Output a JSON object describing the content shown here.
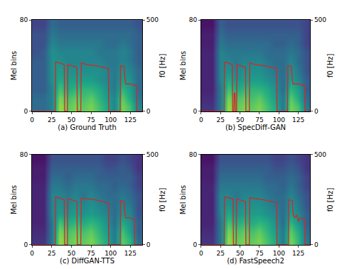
{
  "chart_data": [
    {
      "type": "heatmap",
      "title": "(a) Ground Truth",
      "y_label": "Mel bins",
      "y2_label": "f0 [Hz]",
      "x": [
        5,
        15,
        25,
        35,
        45,
        55,
        65,
        75,
        85,
        95,
        105,
        115,
        125,
        135
      ],
      "y": [
        4,
        12,
        20,
        28,
        36,
        44,
        52,
        60,
        68,
        76
      ],
      "z": [
        [
          0.35,
          0.35,
          0.45,
          0.85,
          0.75,
          0.8,
          0.75,
          0.8,
          0.7,
          0.6,
          0.45,
          0.8,
          0.7,
          0.45
        ],
        [
          0.35,
          0.35,
          0.45,
          0.8,
          0.7,
          0.75,
          0.7,
          0.75,
          0.65,
          0.55,
          0.45,
          0.75,
          0.6,
          0.4
        ],
        [
          0.3,
          0.3,
          0.45,
          0.7,
          0.6,
          0.65,
          0.65,
          0.65,
          0.6,
          0.5,
          0.4,
          0.65,
          0.55,
          0.35
        ],
        [
          0.3,
          0.3,
          0.5,
          0.6,
          0.55,
          0.55,
          0.55,
          0.55,
          0.5,
          0.45,
          0.4,
          0.55,
          0.5,
          0.35
        ],
        [
          0.3,
          0.3,
          0.5,
          0.55,
          0.5,
          0.5,
          0.5,
          0.5,
          0.5,
          0.45,
          0.4,
          0.5,
          0.45,
          0.35
        ],
        [
          0.3,
          0.3,
          0.5,
          0.5,
          0.45,
          0.45,
          0.45,
          0.45,
          0.45,
          0.4,
          0.4,
          0.45,
          0.4,
          0.3
        ],
        [
          0.25,
          0.3,
          0.5,
          0.45,
          0.45,
          0.45,
          0.45,
          0.45,
          0.4,
          0.4,
          0.4,
          0.45,
          0.4,
          0.3
        ],
        [
          0.25,
          0.25,
          0.45,
          0.4,
          0.4,
          0.4,
          0.4,
          0.4,
          0.4,
          0.35,
          0.35,
          0.4,
          0.35,
          0.3
        ],
        [
          0.25,
          0.25,
          0.4,
          0.35,
          0.35,
          0.35,
          0.35,
          0.35,
          0.35,
          0.35,
          0.35,
          0.35,
          0.35,
          0.3
        ],
        [
          0.2,
          0.2,
          0.35,
          0.3,
          0.3,
          0.3,
          0.3,
          0.3,
          0.3,
          0.3,
          0.3,
          0.3,
          0.3,
          0.25
        ]
      ],
      "zlim": [
        0,
        1
      ],
      "xlim": [
        0,
        140
      ],
      "xticks": [
        0,
        25,
        50,
        75,
        100,
        125
      ],
      "ylim": [
        0,
        80
      ],
      "yticks": [
        0,
        80
      ],
      "y2lim": [
        0,
        500
      ],
      "y2ticks": [
        0,
        500
      ],
      "grid": false,
      "series": [
        {
          "type": "line",
          "axis": "y2",
          "color": "#d62728",
          "x": [
            0,
            29.5,
            30,
            35,
            41,
            41.5,
            45,
            45.5,
            50,
            57,
            57.5,
            62,
            62.5,
            70,
            80,
            90,
            97,
            97.5,
            112,
            112.5,
            117,
            118,
            119,
            125,
            130,
            132.5,
            133,
            140
          ],
          "values": [
            0,
            0,
            270,
            265,
            255,
            0,
            0,
            255,
            250,
            240,
            0,
            0,
            265,
            255,
            250,
            240,
            235,
            0,
            0,
            250,
            245,
            180,
            150,
            150,
            145,
            140,
            0,
            0
          ]
        }
      ]
    },
    {
      "type": "heatmap",
      "title": "(b) SpecDiff-GAN",
      "y_label": "Mel bins",
      "y2_label": "f0 [Hz]",
      "x": [
        5,
        15,
        25,
        35,
        45,
        55,
        65,
        75,
        85,
        95,
        105,
        115,
        125,
        135
      ],
      "y": [
        4,
        12,
        20,
        28,
        36,
        44,
        52,
        60,
        68,
        76
      ],
      "z": [
        [
          0.15,
          0.15,
          0.4,
          0.85,
          0.75,
          0.8,
          0.75,
          0.8,
          0.7,
          0.6,
          0.4,
          0.8,
          0.7,
          0.4
        ],
        [
          0.12,
          0.12,
          0.4,
          0.8,
          0.7,
          0.75,
          0.7,
          0.75,
          0.65,
          0.55,
          0.4,
          0.75,
          0.6,
          0.35
        ],
        [
          0.1,
          0.1,
          0.4,
          0.7,
          0.6,
          0.65,
          0.65,
          0.65,
          0.6,
          0.5,
          0.35,
          0.65,
          0.55,
          0.3
        ],
        [
          0.1,
          0.1,
          0.45,
          0.6,
          0.5,
          0.55,
          0.55,
          0.55,
          0.5,
          0.45,
          0.35,
          0.55,
          0.45,
          0.3
        ],
        [
          0.1,
          0.1,
          0.45,
          0.5,
          0.45,
          0.5,
          0.5,
          0.5,
          0.45,
          0.4,
          0.35,
          0.5,
          0.4,
          0.25
        ],
        [
          0.1,
          0.1,
          0.45,
          0.45,
          0.4,
          0.45,
          0.45,
          0.45,
          0.4,
          0.35,
          0.35,
          0.45,
          0.35,
          0.25
        ],
        [
          0.1,
          0.1,
          0.45,
          0.4,
          0.4,
          0.4,
          0.4,
          0.4,
          0.35,
          0.35,
          0.35,
          0.4,
          0.35,
          0.25
        ],
        [
          0.08,
          0.08,
          0.4,
          0.35,
          0.35,
          0.35,
          0.35,
          0.35,
          0.35,
          0.3,
          0.3,
          0.35,
          0.3,
          0.2
        ],
        [
          0.08,
          0.08,
          0.35,
          0.3,
          0.3,
          0.3,
          0.3,
          0.3,
          0.3,
          0.3,
          0.3,
          0.3,
          0.3,
          0.2
        ],
        [
          0.05,
          0.05,
          0.3,
          0.25,
          0.25,
          0.25,
          0.25,
          0.25,
          0.25,
          0.25,
          0.25,
          0.25,
          0.25,
          0.2
        ]
      ],
      "zlim": [
        0,
        1
      ],
      "xlim": [
        0,
        140
      ],
      "xticks": [
        0,
        25,
        50,
        75,
        100,
        125
      ],
      "ylim": [
        0,
        80
      ],
      "yticks": [
        0,
        80
      ],
      "y2lim": [
        0,
        500
      ],
      "y2ticks": [
        0,
        500
      ],
      "grid": false,
      "series": [
        {
          "type": "line",
          "axis": "y2",
          "color": "#d62728",
          "x": [
            0,
            29.5,
            30,
            35,
            40,
            40.5,
            42,
            42.5,
            43.5,
            44,
            45.5,
            46,
            50,
            57,
            57.5,
            62,
            62.5,
            70,
            80,
            90,
            97,
            97.5,
            111,
            111.5,
            116,
            117,
            118,
            125,
            130,
            133,
            133.5,
            140
          ],
          "values": [
            0,
            0,
            270,
            265,
            255,
            0,
            0,
            100,
            100,
            0,
            0,
            255,
            250,
            240,
            0,
            0,
            265,
            255,
            250,
            240,
            235,
            0,
            0,
            250,
            245,
            180,
            150,
            150,
            145,
            140,
            0,
            0
          ]
        }
      ]
    },
    {
      "type": "heatmap",
      "title": "(c) DiffGAN-TTS",
      "y_label": "Mel bins",
      "y2_label": "f0 [Hz]",
      "x": [
        5,
        15,
        25,
        35,
        45,
        55,
        65,
        75,
        85,
        95,
        105,
        115,
        125,
        135
      ],
      "y": [
        4,
        12,
        20,
        28,
        36,
        44,
        52,
        60,
        68,
        76
      ],
      "z": [
        [
          0.15,
          0.15,
          0.4,
          0.85,
          0.75,
          0.8,
          0.75,
          0.8,
          0.7,
          0.6,
          0.4,
          0.75,
          0.65,
          0.35
        ],
        [
          0.12,
          0.12,
          0.4,
          0.8,
          0.7,
          0.75,
          0.7,
          0.75,
          0.65,
          0.55,
          0.4,
          0.7,
          0.55,
          0.3
        ],
        [
          0.1,
          0.1,
          0.4,
          0.7,
          0.6,
          0.65,
          0.6,
          0.65,
          0.6,
          0.5,
          0.35,
          0.6,
          0.5,
          0.3
        ],
        [
          0.1,
          0.1,
          0.45,
          0.55,
          0.5,
          0.55,
          0.5,
          0.55,
          0.5,
          0.45,
          0.35,
          0.5,
          0.45,
          0.25
        ],
        [
          0.1,
          0.1,
          0.45,
          0.5,
          0.45,
          0.5,
          0.45,
          0.5,
          0.45,
          0.4,
          0.35,
          0.45,
          0.4,
          0.25
        ],
        [
          0.1,
          0.1,
          0.45,
          0.45,
          0.4,
          0.45,
          0.4,
          0.45,
          0.4,
          0.35,
          0.35,
          0.4,
          0.35,
          0.25
        ],
        [
          0.1,
          0.1,
          0.4,
          0.4,
          0.35,
          0.4,
          0.4,
          0.4,
          0.35,
          0.35,
          0.3,
          0.35,
          0.3,
          0.2
        ],
        [
          0.08,
          0.08,
          0.35,
          0.35,
          0.3,
          0.35,
          0.35,
          0.35,
          0.3,
          0.3,
          0.3,
          0.3,
          0.3,
          0.2
        ],
        [
          0.08,
          0.08,
          0.3,
          0.3,
          0.3,
          0.3,
          0.3,
          0.3,
          0.3,
          0.25,
          0.25,
          0.3,
          0.25,
          0.15
        ],
        [
          0.05,
          0.05,
          0.25,
          0.25,
          0.25,
          0.25,
          0.25,
          0.25,
          0.25,
          0.2,
          0.2,
          0.25,
          0.2,
          0.15
        ]
      ],
      "zlim": [
        0,
        1
      ],
      "xlim": [
        0,
        140
      ],
      "xticks": [
        0,
        25,
        50,
        75,
        100,
        125
      ],
      "ylim": [
        0,
        80
      ],
      "yticks": [
        0,
        80
      ],
      "y2lim": [
        0,
        500
      ],
      "y2ticks": [
        0,
        500
      ],
      "grid": false,
      "series": [
        {
          "type": "line",
          "axis": "y2",
          "color": "#d62728",
          "x": [
            0,
            29.5,
            30,
            35,
            41,
            41.5,
            45,
            45.5,
            50,
            57,
            57.5,
            62,
            62.5,
            70,
            80,
            90,
            97,
            97.5,
            112,
            112.5,
            117,
            118,
            119,
            125,
            130,
            130.5,
            140
          ],
          "values": [
            0,
            0,
            265,
            260,
            250,
            0,
            0,
            255,
            250,
            240,
            0,
            0,
            260,
            255,
            250,
            240,
            230,
            0,
            0,
            245,
            240,
            175,
            150,
            150,
            140,
            0,
            0
          ]
        }
      ]
    },
    {
      "type": "heatmap",
      "title": "(d) FastSpeech2",
      "y_label": "Mel bins",
      "y2_label": "f0 [Hz]",
      "x": [
        5,
        15,
        25,
        35,
        45,
        55,
        65,
        75,
        85,
        95,
        105,
        115,
        125,
        135
      ],
      "y": [
        4,
        12,
        20,
        28,
        36,
        44,
        52,
        60,
        68,
        76
      ],
      "z": [
        [
          0.15,
          0.15,
          0.4,
          0.85,
          0.75,
          0.8,
          0.75,
          0.8,
          0.7,
          0.6,
          0.4,
          0.8,
          0.65,
          0.4
        ],
        [
          0.12,
          0.12,
          0.4,
          0.8,
          0.7,
          0.75,
          0.7,
          0.75,
          0.65,
          0.55,
          0.4,
          0.75,
          0.6,
          0.35
        ],
        [
          0.1,
          0.1,
          0.4,
          0.7,
          0.6,
          0.65,
          0.6,
          0.65,
          0.6,
          0.5,
          0.35,
          0.65,
          0.5,
          0.3
        ],
        [
          0.1,
          0.1,
          0.45,
          0.6,
          0.5,
          0.55,
          0.55,
          0.55,
          0.5,
          0.45,
          0.35,
          0.55,
          0.45,
          0.3
        ],
        [
          0.1,
          0.1,
          0.45,
          0.5,
          0.45,
          0.5,
          0.5,
          0.5,
          0.45,
          0.4,
          0.35,
          0.5,
          0.4,
          0.25
        ],
        [
          0.1,
          0.1,
          0.45,
          0.45,
          0.4,
          0.45,
          0.45,
          0.45,
          0.4,
          0.35,
          0.35,
          0.45,
          0.35,
          0.25
        ],
        [
          0.1,
          0.1,
          0.4,
          0.4,
          0.4,
          0.4,
          0.4,
          0.4,
          0.35,
          0.35,
          0.3,
          0.4,
          0.3,
          0.2
        ],
        [
          0.08,
          0.08,
          0.35,
          0.35,
          0.35,
          0.35,
          0.35,
          0.35,
          0.3,
          0.3,
          0.3,
          0.35,
          0.3,
          0.2
        ],
        [
          0.08,
          0.08,
          0.3,
          0.3,
          0.3,
          0.3,
          0.3,
          0.3,
          0.3,
          0.25,
          0.25,
          0.3,
          0.25,
          0.15
        ],
        [
          0.05,
          0.05,
          0.25,
          0.25,
          0.25,
          0.25,
          0.25,
          0.25,
          0.25,
          0.2,
          0.2,
          0.25,
          0.2,
          0.15
        ]
      ],
      "zlim": [
        0,
        1
      ],
      "xlim": [
        0,
        140
      ],
      "xticks": [
        0,
        25,
        50,
        75,
        100,
        125
      ],
      "ylim": [
        0,
        80
      ],
      "yticks": [
        0,
        80
      ],
      "y2lim": [
        0,
        500
      ],
      "y2ticks": [
        0,
        500
      ],
      "grid": false,
      "series": [
        {
          "type": "line",
          "axis": "y2",
          "color": "#d62728",
          "x": [
            0,
            29.5,
            30,
            35,
            41,
            41.5,
            45,
            45.5,
            50,
            57,
            57.5,
            62,
            62.5,
            70,
            80,
            90,
            97,
            97.5,
            112,
            112.5,
            117,
            118,
            120,
            123,
            125,
            127,
            130,
            133,
            133.5,
            140
          ],
          "values": [
            0,
            0,
            265,
            260,
            255,
            0,
            0,
            255,
            250,
            240,
            0,
            0,
            260,
            255,
            250,
            240,
            235,
            0,
            0,
            250,
            245,
            175,
            150,
            165,
            130,
            150,
            145,
            140,
            0,
            0
          ]
        }
      ]
    }
  ]
}
